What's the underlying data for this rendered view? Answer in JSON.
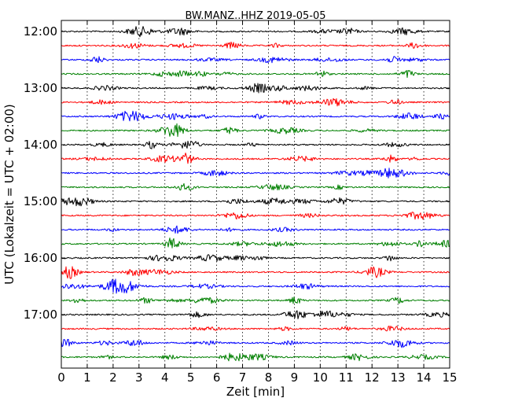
{
  "chart_data": {
    "type": "line",
    "title": "BW.MANZ..HHZ 2019-05-05",
    "xlabel": "Zeit  [min]",
    "ylabel": "UTC (Lokalzeit = UTC + 02:00)",
    "xlim": [
      0,
      15
    ],
    "x_ticks": [
      0,
      1,
      2,
      3,
      4,
      5,
      6,
      7,
      8,
      9,
      10,
      11,
      12,
      13,
      14,
      15
    ],
    "x_tick_labels": [
      "0",
      "1",
      "2",
      "3",
      "4",
      "5",
      "6",
      "7",
      "8",
      "9",
      "10",
      "11",
      "12",
      "13",
      "14",
      "15"
    ],
    "y_tick_labels": [
      "12:00",
      "13:00",
      "14:00",
      "15:00",
      "16:00",
      "17:00"
    ],
    "grid": "vertical dotted at each minute",
    "trace_colors": [
      "#000000",
      "#ff0000",
      "#0000ff",
      "#008000"
    ],
    "trace_start_times": [
      "12:00",
      "12:15",
      "12:30",
      "12:45",
      "13:00",
      "13:15",
      "13:30",
      "13:45",
      "14:00",
      "14:15",
      "14:30",
      "14:45",
      "15:00",
      "15:15",
      "15:30",
      "15:45",
      "16:00",
      "16:15",
      "16:30",
      "16:45",
      "17:00",
      "17:15",
      "17:30",
      "17:45"
    ],
    "trace_duration_min": 15
  }
}
